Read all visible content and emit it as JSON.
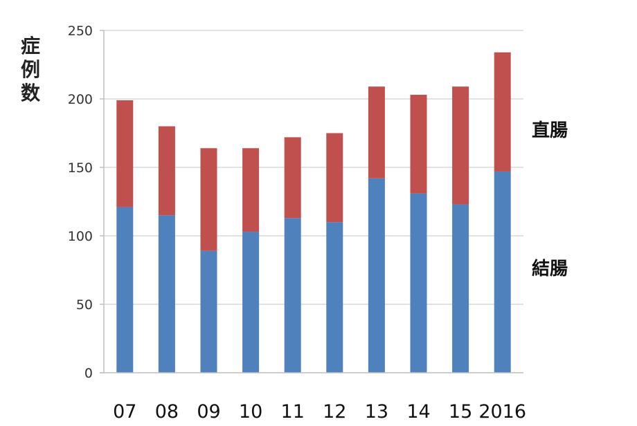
{
  "ylabel_chars": [
    "症",
    "例",
    "数"
  ],
  "legend": {
    "rectum": "直腸",
    "colon": "結腸"
  },
  "colors": {
    "colon": "#4f81bd",
    "rectum": "#c0504d",
    "grid": "#d9d9d9",
    "axis": "#bfbfbf"
  },
  "chart_data": {
    "type": "bar",
    "stacked": true,
    "categories": [
      "07",
      "08",
      "09",
      "10",
      "11",
      "12",
      "13",
      "14",
      "15",
      "2016"
    ],
    "series": [
      {
        "name": "結腸",
        "values": [
          121,
          115,
          89,
          103,
          113,
          110,
          142,
          131,
          123,
          147
        ]
      },
      {
        "name": "直腸",
        "values": [
          78,
          65,
          75,
          61,
          59,
          65,
          67,
          72,
          86,
          87
        ]
      }
    ],
    "ylabel": "症例数",
    "xlabel": "",
    "ylim": [
      0,
      250
    ],
    "yticks": [
      0,
      50,
      100,
      150,
      200,
      250
    ],
    "grid": true
  }
}
